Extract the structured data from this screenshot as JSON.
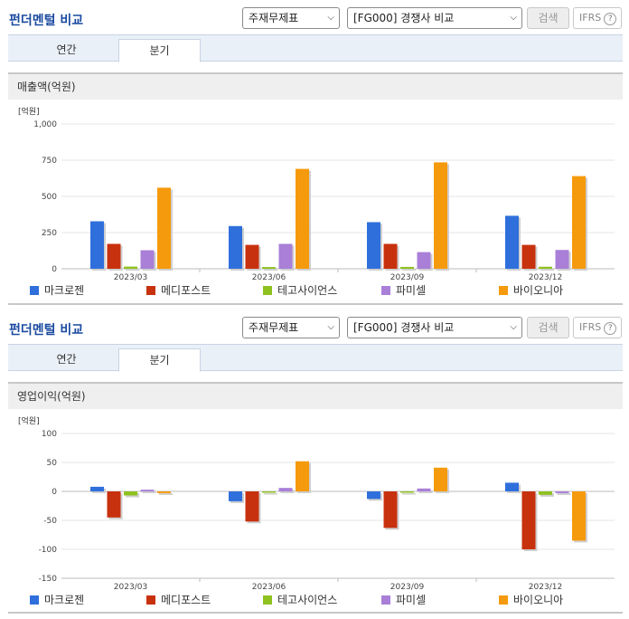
{
  "panels": [
    {
      "title": "펀더멘털 비교",
      "select1": "주재무제표",
      "select2": "[FG000] 경쟁사 비교",
      "search_label": "검색",
      "ifrs_label": "IFRS",
      "help_glyph": "?",
      "tabs": [
        {
          "label": "연간",
          "active": false
        },
        {
          "label": "분기",
          "active": true
        }
      ],
      "metric_label": "매출액(억원)",
      "chart_data": {
        "type": "bar",
        "unit_label": "[억원]",
        "categories": [
          "2023/03",
          "2023/06",
          "2023/09",
          "2023/12"
        ],
        "ylim": [
          0,
          1000
        ],
        "yticks": [
          0,
          250,
          500,
          750,
          1000
        ],
        "ytick_labels": [
          "0",
          "250",
          "500",
          "750",
          "1,000"
        ],
        "series": [
          {
            "name": "마크로젠",
            "color": "#2f6fdc",
            "values": [
              328,
              295,
              322,
              366
            ]
          },
          {
            "name": "메디포스트",
            "color": "#c8310e",
            "values": [
              172,
              165,
              172,
              165
            ]
          },
          {
            "name": "테고사이언스",
            "color": "#8fc11f",
            "values": [
              15,
              12,
              13,
              14
            ]
          },
          {
            "name": "파미셀",
            "color": "#a97fd8",
            "values": [
              128,
              172,
              115,
              130
            ]
          },
          {
            "name": "바이오니아",
            "color": "#f59a0c",
            "values": [
              560,
              690,
              735,
              640
            ]
          }
        ]
      }
    },
    {
      "title": "펀더멘털 비교",
      "select1": "주재무제표",
      "select2": "[FG000] 경쟁사 비교",
      "search_label": "검색",
      "ifrs_label": "IFRS",
      "help_glyph": "?",
      "tabs": [
        {
          "label": "연간",
          "active": false
        },
        {
          "label": "분기",
          "active": true
        }
      ],
      "metric_label": "영업이익(억원)",
      "chart_data": {
        "type": "bar",
        "unit_label": "[억원]",
        "categories": [
          "2023/03",
          "2023/06",
          "2023/09",
          "2023/12"
        ],
        "ylim": [
          -150,
          100
        ],
        "yticks": [
          -150,
          -100,
          -50,
          0,
          50,
          100
        ],
        "ytick_labels": [
          "-150",
          "-100",
          "-50",
          "0",
          "50",
          "100"
        ],
        "series": [
          {
            "name": "마크로젠",
            "color": "#2f6fdc",
            "values": [
              8,
              -17,
              -13,
              15
            ]
          },
          {
            "name": "메디포스트",
            "color": "#c8310e",
            "values": [
              -45,
              -52,
              -63,
              -100
            ]
          },
          {
            "name": "테고사이언스",
            "color": "#8fc11f",
            "values": [
              -7,
              -1,
              -2,
              -6
            ]
          },
          {
            "name": "파미셀",
            "color": "#a97fd8",
            "values": [
              3,
              6,
              5,
              -3
            ]
          },
          {
            "name": "바이오니아",
            "color": "#f59a0c",
            "values": [
              -3,
              52,
              41,
              -85
            ]
          }
        ]
      }
    }
  ]
}
